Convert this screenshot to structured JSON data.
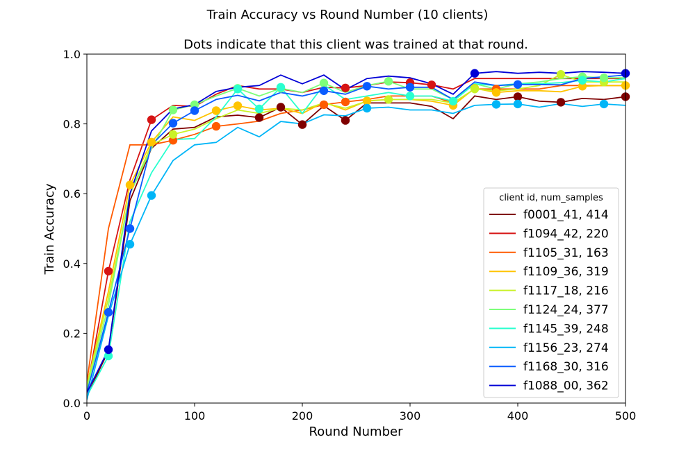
{
  "chart_data": {
    "type": "line",
    "title": "Train Accuracy vs Round Number (10 clients)",
    "subtitle": "Dots indicate that this client was trained at that round.",
    "xlabel": "Round Number",
    "ylabel": "Train Accuracy",
    "xlim": [
      0,
      500
    ],
    "ylim": [
      0.0,
      1.0
    ],
    "xticks": [
      0,
      100,
      200,
      300,
      400,
      500
    ],
    "xtick_labels": [
      "0",
      "100",
      "200",
      "300",
      "400",
      "500"
    ],
    "yticks": [
      0.0,
      0.2,
      0.4,
      0.6,
      0.8,
      1.0
    ],
    "ytick_labels": [
      "0.0",
      "0.2",
      "0.4",
      "0.6",
      "0.8",
      "1.0"
    ],
    "grid": false,
    "legend": {
      "title": "client id, num_samples",
      "placement": "lower-right"
    },
    "x": [
      0,
      20,
      40,
      60,
      80,
      100,
      120,
      140,
      160,
      180,
      200,
      220,
      240,
      260,
      280,
      300,
      320,
      340,
      360,
      380,
      400,
      420,
      440,
      460,
      480,
      500
    ],
    "series": [
      {
        "name": "f0001_41, 414",
        "color": "#7f0000",
        "values": [
          0.02,
          0.15,
          0.58,
          0.73,
          0.785,
          0.79,
          0.82,
          0.825,
          0.818,
          0.848,
          0.798,
          0.852,
          0.81,
          0.86,
          0.86,
          0.86,
          0.85,
          0.815,
          0.88,
          0.87,
          0.878,
          0.865,
          0.862,
          0.873,
          0.87,
          0.878
        ],
        "dots": [
          160,
          180,
          200,
          240,
          400,
          440,
          500
        ]
      },
      {
        "name": "f1094_42, 220",
        "color": "#d61414",
        "values": [
          0.04,
          0.378,
          0.64,
          0.812,
          0.853,
          0.85,
          0.885,
          0.91,
          0.9,
          0.9,
          0.89,
          0.905,
          0.903,
          0.91,
          0.92,
          0.918,
          0.912,
          0.9,
          0.93,
          0.93,
          0.93,
          0.93,
          0.93,
          0.93,
          0.93,
          0.93
        ],
        "dots": [
          20,
          60,
          240,
          300,
          320
        ]
      },
      {
        "name": "f1105_31, 163",
        "color": "#ff5a00",
        "values": [
          0.06,
          0.5,
          0.74,
          0.74,
          0.753,
          0.77,
          0.793,
          0.8,
          0.808,
          0.83,
          0.84,
          0.855,
          0.863,
          0.87,
          0.88,
          0.88,
          0.88,
          0.86,
          0.9,
          0.9,
          0.9,
          0.9,
          0.91,
          0.91,
          0.91,
          0.91
        ],
        "dots": [
          80,
          120,
          220,
          240,
          380
        ]
      },
      {
        "name": "f1109_36, 319",
        "color": "#ffc400",
        "values": [
          0.05,
          0.32,
          0.625,
          0.748,
          0.82,
          0.81,
          0.838,
          0.852,
          0.84,
          0.845,
          0.83,
          0.862,
          0.84,
          0.866,
          0.87,
          0.87,
          0.865,
          0.853,
          0.902,
          0.89,
          0.895,
          0.895,
          0.892,
          0.908,
          0.91,
          0.91
        ],
        "dots": [
          40,
          60,
          120,
          140,
          260,
          340,
          360,
          380,
          460,
          500
        ]
      },
      {
        "name": "f1117_18, 216",
        "color": "#c9f227",
        "values": [
          0.05,
          0.3,
          0.6,
          0.74,
          0.77,
          0.785,
          0.815,
          0.84,
          0.83,
          0.845,
          0.84,
          0.86,
          0.845,
          0.865,
          0.87,
          0.87,
          0.87,
          0.86,
          0.9,
          0.895,
          0.9,
          0.91,
          0.942,
          0.92,
          0.92,
          0.92
        ],
        "dots": [
          80,
          280,
          360,
          440,
          480
        ]
      },
      {
        "name": "f1124_24, 377",
        "color": "#7dff7a",
        "values": [
          0.04,
          0.28,
          0.6,
          0.73,
          0.84,
          0.855,
          0.88,
          0.902,
          0.88,
          0.902,
          0.89,
          0.917,
          0.89,
          0.91,
          0.922,
          0.9,
          0.9,
          0.87,
          0.915,
          0.9,
          0.915,
          0.92,
          0.93,
          0.935,
          0.932,
          0.932
        ],
        "dots": [
          80,
          100,
          140,
          180,
          220,
          280,
          460,
          480
        ]
      },
      {
        "name": "f1145_39, 248",
        "color": "#29ffcf",
        "values": [
          0.02,
          0.135,
          0.52,
          0.66,
          0.755,
          0.758,
          0.82,
          0.9,
          0.843,
          0.905,
          0.83,
          0.912,
          0.87,
          0.88,
          0.89,
          0.88,
          0.88,
          0.865,
          0.915,
          0.91,
          0.915,
          0.915,
          0.918,
          0.925,
          0.92,
          0.93
        ],
        "dots": [
          20,
          140,
          160,
          180,
          300,
          340,
          460
        ]
      },
      {
        "name": "f1156_23, 274",
        "color": "#00b5f7",
        "values": [
          0.01,
          0.25,
          0.455,
          0.595,
          0.695,
          0.74,
          0.747,
          0.79,
          0.763,
          0.807,
          0.8,
          0.826,
          0.823,
          0.845,
          0.848,
          0.84,
          0.84,
          0.83,
          0.853,
          0.856,
          0.857,
          0.848,
          0.858,
          0.85,
          0.857,
          0.853
        ],
        "dots": [
          40,
          60,
          260,
          380,
          400,
          480
        ]
      },
      {
        "name": "f1168_30, 316",
        "color": "#0a5cff",
        "values": [
          0.03,
          0.26,
          0.5,
          0.74,
          0.802,
          0.838,
          0.87,
          0.882,
          0.866,
          0.89,
          0.88,
          0.895,
          0.885,
          0.908,
          0.9,
          0.905,
          0.905,
          0.87,
          0.92,
          0.91,
          0.913,
          0.913,
          0.912,
          0.93,
          0.935,
          0.94
        ],
        "dots": [
          20,
          40,
          80,
          100,
          220,
          260,
          300,
          400
        ]
      },
      {
        "name": "f1088_00, 362",
        "color": "#0000d6",
        "values": [
          0.03,
          0.153,
          0.6,
          0.78,
          0.843,
          0.855,
          0.893,
          0.905,
          0.91,
          0.94,
          0.915,
          0.94,
          0.898,
          0.93,
          0.937,
          0.932,
          0.915,
          0.885,
          0.945,
          0.95,
          0.945,
          0.948,
          0.945,
          0.95,
          0.948,
          0.945
        ],
        "dots": [
          20,
          360,
          500
        ]
      }
    ]
  }
}
